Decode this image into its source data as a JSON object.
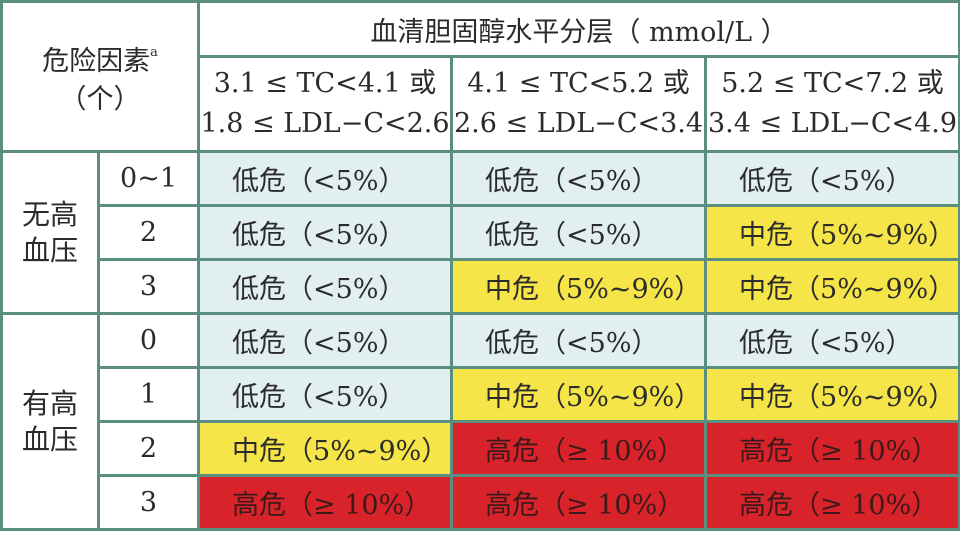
{
  "header": {
    "factor_label": "危险因素",
    "factor_sup": "a",
    "factor_sub": "（个）",
    "main_title": "血清胆固醇水平分层（ mmol/L ）",
    "columns": [
      {
        "line1": "3.1 ≤ TC<4.1 或",
        "line2": "1.8 ≤ LDL−C<2.6"
      },
      {
        "line1": "4.1 ≤ TC<5.2 或",
        "line2": "2.6 ≤ LDL−C<3.4"
      },
      {
        "line1": "5.2 ≤ TC<7.2 或",
        "line2": "3.4 ≤ LDL−C<4.9"
      }
    ]
  },
  "groups": [
    {
      "label_line1": "无高",
      "label_line2": "血压"
    },
    {
      "label_line1": "有高",
      "label_line2": "血压"
    }
  ],
  "rows": [
    {
      "factor": "0~1",
      "cells": [
        "低危（<5%）",
        "低危（<5%）",
        "低危（<5%）"
      ]
    },
    {
      "factor": "2",
      "cells": [
        "低危（<5%）",
        "低危（<5%）",
        "中危（5%~9%）"
      ]
    },
    {
      "factor": "3",
      "cells": [
        "低危（<5%）",
        "中危（5%~9%）",
        "中危（5%~9%）"
      ]
    },
    {
      "factor": "0",
      "cells": [
        "低危（<5%）",
        "低危（<5%）",
        "低危（<5%）"
      ]
    },
    {
      "factor": "1",
      "cells": [
        "低危（<5%）",
        "中危（5%~9%）",
        "中危（5%~9%）"
      ]
    },
    {
      "factor": "2",
      "cells": [
        "中危（5%~9%）",
        "高危（≥ 10%）",
        "高危（≥ 10%）"
      ]
    },
    {
      "factor": "3",
      "cells": [
        "高危（≥ 10%）",
        "高危（≥ 10%）",
        "高危（≥ 10%）"
      ]
    }
  ],
  "colors": {
    "border": "#5a8f7f",
    "low": "#e2eff1",
    "mid": "#f5e548",
    "high": "#d9232a"
  }
}
